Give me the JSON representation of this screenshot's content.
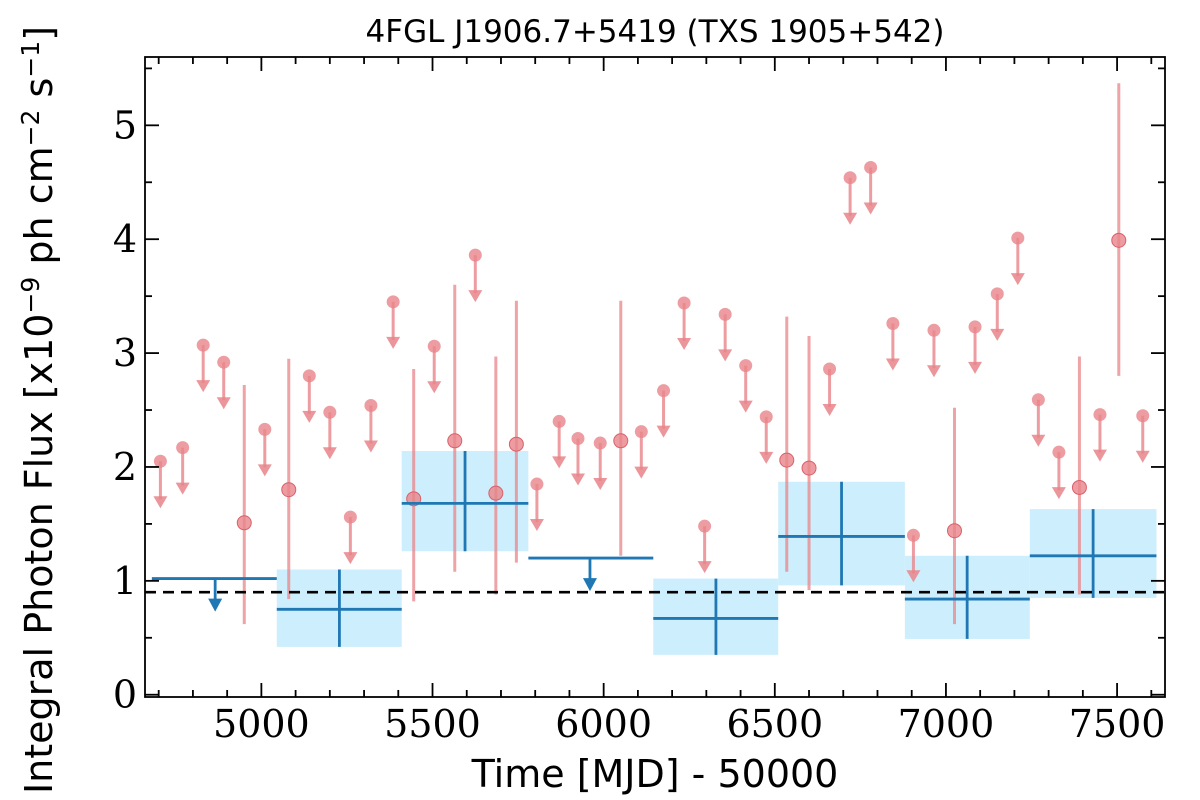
{
  "chart_data": {
    "type": "scatter",
    "title": "4FGL J1906.7+5419 (TXS 1905+542)",
    "xlabel": "Time [MJD] - 50000",
    "ylabel": "Integral Photon Flux [x10",
    "ylabel_exp": "−9",
    "ylabel_units": " ph cm",
    "ylabel_exp2": "−2",
    "ylabel_units2": " s",
    "ylabel_exp3": "−1",
    "ylabel_end": "]",
    "xlim": [
      4660,
      7640
    ],
    "ylim": [
      -0.02,
      5.6
    ],
    "x_ticks": [
      5000,
      5500,
      6000,
      6500,
      7000,
      7500
    ],
    "y_ticks": [
      0,
      1,
      2,
      3,
      4,
      5
    ],
    "reference_line": 0.9,
    "colors": {
      "fine": "#e8848a",
      "coarse": "#1f77b4",
      "coarse_band": "#cdeefc",
      "reference": "#000000"
    },
    "series": [
      {
        "kind": "fine_detections",
        "points": [
          {
            "x": 4950,
            "y": 1.51,
            "lo": 0.62,
            "hi": 2.72
          },
          {
            "x": 5080,
            "y": 1.8,
            "lo": 0.84,
            "hi": 2.95
          },
          {
            "x": 5445,
            "y": 1.72,
            "lo": 0.82,
            "hi": 2.86
          },
          {
            "x": 5565,
            "y": 2.23,
            "lo": 1.08,
            "hi": 3.6
          },
          {
            "x": 5685,
            "y": 1.77,
            "lo": 0.88,
            "hi": 2.97
          },
          {
            "x": 5745,
            "y": 2.2,
            "lo": 1.16,
            "hi": 3.46
          },
          {
            "x": 6050,
            "y": 2.23,
            "lo": 1.22,
            "hi": 3.46
          },
          {
            "x": 6535,
            "y": 2.06,
            "lo": 1.08,
            "hi": 3.32
          },
          {
            "x": 6600,
            "y": 1.99,
            "lo": 0.92,
            "hi": 3.15
          },
          {
            "x": 7025,
            "y": 1.44,
            "lo": 0.62,
            "hi": 2.52
          },
          {
            "x": 7390,
            "y": 1.82,
            "lo": 0.88,
            "hi": 2.97
          },
          {
            "x": 7505,
            "y": 3.99,
            "lo": 2.8,
            "hi": 5.37
          }
        ]
      },
      {
        "kind": "fine_upper_limits",
        "points": [
          {
            "x": 4705,
            "y": 2.05
          },
          {
            "x": 4770,
            "y": 2.17
          },
          {
            "x": 4830,
            "y": 3.07
          },
          {
            "x": 4890,
            "y": 2.92
          },
          {
            "x": 5010,
            "y": 2.33
          },
          {
            "x": 5140,
            "y": 2.8
          },
          {
            "x": 5200,
            "y": 2.48
          },
          {
            "x": 5260,
            "y": 1.56
          },
          {
            "x": 5320,
            "y": 2.54
          },
          {
            "x": 5385,
            "y": 3.45
          },
          {
            "x": 5505,
            "y": 3.06
          },
          {
            "x": 5625,
            "y": 3.86
          },
          {
            "x": 5805,
            "y": 1.85
          },
          {
            "x": 5870,
            "y": 2.4
          },
          {
            "x": 5925,
            "y": 2.25
          },
          {
            "x": 5990,
            "y": 2.21
          },
          {
            "x": 6110,
            "y": 2.31
          },
          {
            "x": 6175,
            "y": 2.67
          },
          {
            "x": 6235,
            "y": 3.44
          },
          {
            "x": 6295,
            "y": 1.48
          },
          {
            "x": 6355,
            "y": 3.34
          },
          {
            "x": 6415,
            "y": 2.89
          },
          {
            "x": 6475,
            "y": 2.44
          },
          {
            "x": 6660,
            "y": 2.86
          },
          {
            "x": 6720,
            "y": 4.54
          },
          {
            "x": 6780,
            "y": 4.63
          },
          {
            "x": 6845,
            "y": 3.26
          },
          {
            "x": 6905,
            "y": 1.4
          },
          {
            "x": 6965,
            "y": 3.2
          },
          {
            "x": 7085,
            "y": 3.23
          },
          {
            "x": 7150,
            "y": 3.52
          },
          {
            "x": 7210,
            "y": 4.01
          },
          {
            "x": 7270,
            "y": 2.59
          },
          {
            "x": 7330,
            "y": 2.13
          },
          {
            "x": 7450,
            "y": 2.46
          },
          {
            "x": 7575,
            "y": 2.45
          }
        ]
      },
      {
        "kind": "coarse_upper_limits",
        "points": [
          {
            "x0": 4680,
            "x1": 5045,
            "xc": 4865,
            "y": 1.02
          },
          {
            "x0": 5780,
            "x1": 6145,
            "xc": 5960,
            "y": 1.2
          }
        ]
      },
      {
        "kind": "coarse_detections",
        "points": [
          {
            "x0": 5045,
            "x1": 5410,
            "xc": 5228,
            "y": 0.75,
            "lo": 0.42,
            "hi": 1.1
          },
          {
            "x0": 5410,
            "x1": 5780,
            "xc": 5595,
            "y": 1.68,
            "lo": 1.26,
            "hi": 2.14
          },
          {
            "x0": 6145,
            "x1": 6510,
            "xc": 6328,
            "y": 0.67,
            "lo": 0.35,
            "hi": 1.02
          },
          {
            "x0": 6510,
            "x1": 6880,
            "xc": 6695,
            "y": 1.39,
            "lo": 0.96,
            "hi": 1.87
          },
          {
            "x0": 6880,
            "x1": 7245,
            "xc": 7062,
            "y": 0.84,
            "lo": 0.49,
            "hi": 1.22
          },
          {
            "x0": 7245,
            "x1": 7615,
            "xc": 7430,
            "y": 1.22,
            "lo": 0.85,
            "hi": 1.63
          }
        ]
      }
    ]
  }
}
